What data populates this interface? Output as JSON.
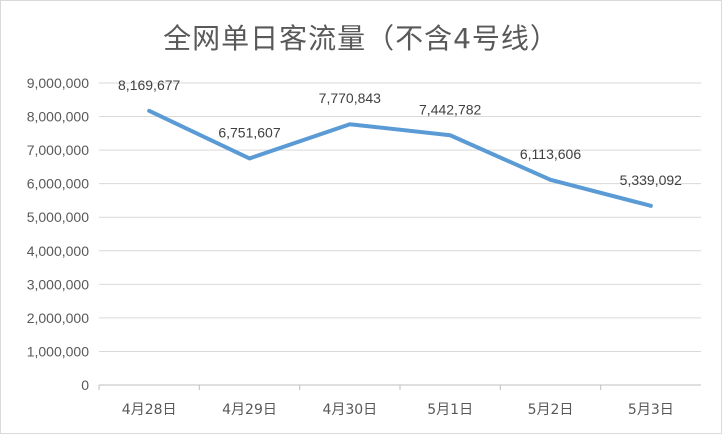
{
  "chart_data": {
    "type": "line",
    "title": "全网单日客流量（不含4号线）",
    "categories": [
      "4月28日",
      "4月29日",
      "4月30日",
      "5月1日",
      "5月2日",
      "5月3日"
    ],
    "series": [
      {
        "values": [
          8169677,
          6751607,
          7770843,
          7442782,
          6113606,
          5339092
        ],
        "labels": [
          "8,169,677",
          "6,751,607",
          "7,770,843",
          "7,442,782",
          "6,113,606",
          "5,339,092"
        ]
      }
    ],
    "ylim": [
      0,
      9000000
    ],
    "yticks": [
      0,
      1000000,
      2000000,
      3000000,
      4000000,
      5000000,
      6000000,
      7000000,
      8000000,
      9000000
    ],
    "ytick_labels": [
      "0",
      "1,000,000",
      "2,000,000",
      "3,000,000",
      "4,000,000",
      "5,000,000",
      "6,000,000",
      "7,000,000",
      "8,000,000",
      "9,000,000"
    ],
    "grid": true,
    "legend": "none",
    "colors": {
      "line": "#5b9bd5",
      "grid": "#d9d9d9"
    }
  }
}
